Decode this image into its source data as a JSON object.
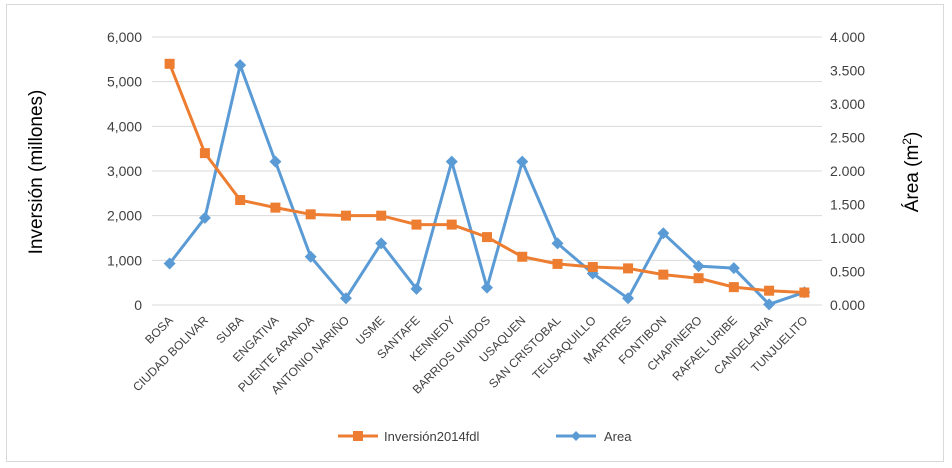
{
  "chart_data": {
    "type": "line",
    "categories": [
      "BOSA",
      "CIUDAD BOLIVAR",
      "SUBA",
      "ENGATIVA",
      "PUENTE ARANDA",
      "ANTONIO NARIÑO",
      "USME",
      "SANTAFE",
      "KENNEDY",
      "BARRIOS UNIDOS",
      "USAQUEN",
      "SAN CRISTOBAL",
      "TEUSAQUILLO",
      "MARTIRES",
      "FONTIBON",
      "CHAPINERO",
      "RAFAEL URIBE",
      "CANDELARIA",
      "TUNJUELITO"
    ],
    "series": [
      {
        "name": "Inversión2014fdl",
        "axis": "left",
        "color": "#ED7D31",
        "marker": "square",
        "values": [
          5400,
          3400,
          2350,
          2180,
          2030,
          2000,
          2000,
          1800,
          1800,
          1520,
          1080,
          920,
          850,
          820,
          680,
          600,
          400,
          320,
          280
        ]
      },
      {
        "name": "Area",
        "axis": "right",
        "color": "#5B9BD5",
        "marker": "diamond",
        "values": [
          0.62,
          1.3,
          3.58,
          2.14,
          0.72,
          0.1,
          0.92,
          0.24,
          2.14,
          0.26,
          2.14,
          0.92,
          0.47,
          0.1,
          1.07,
          0.58,
          0.55,
          0.01,
          0.19
        ]
      }
    ],
    "yaxis_left": {
      "label": "Inversión (millones)",
      "range": [
        0,
        6000
      ],
      "ticks": [
        "0",
        "1,000",
        "2,000",
        "3,000",
        "4,000",
        "5,000",
        "6,000"
      ]
    },
    "yaxis_right": {
      "label": "Área (m",
      "label_sup": "2",
      "label_close": ")",
      "range": [
        0,
        4.0
      ],
      "ticks": [
        "0.000",
        "0.500",
        "1.000",
        "1.500",
        "2.000",
        "2.500",
        "3.000",
        "3.500",
        "4.000"
      ]
    },
    "grid": true,
    "legend_position": "bottom"
  }
}
